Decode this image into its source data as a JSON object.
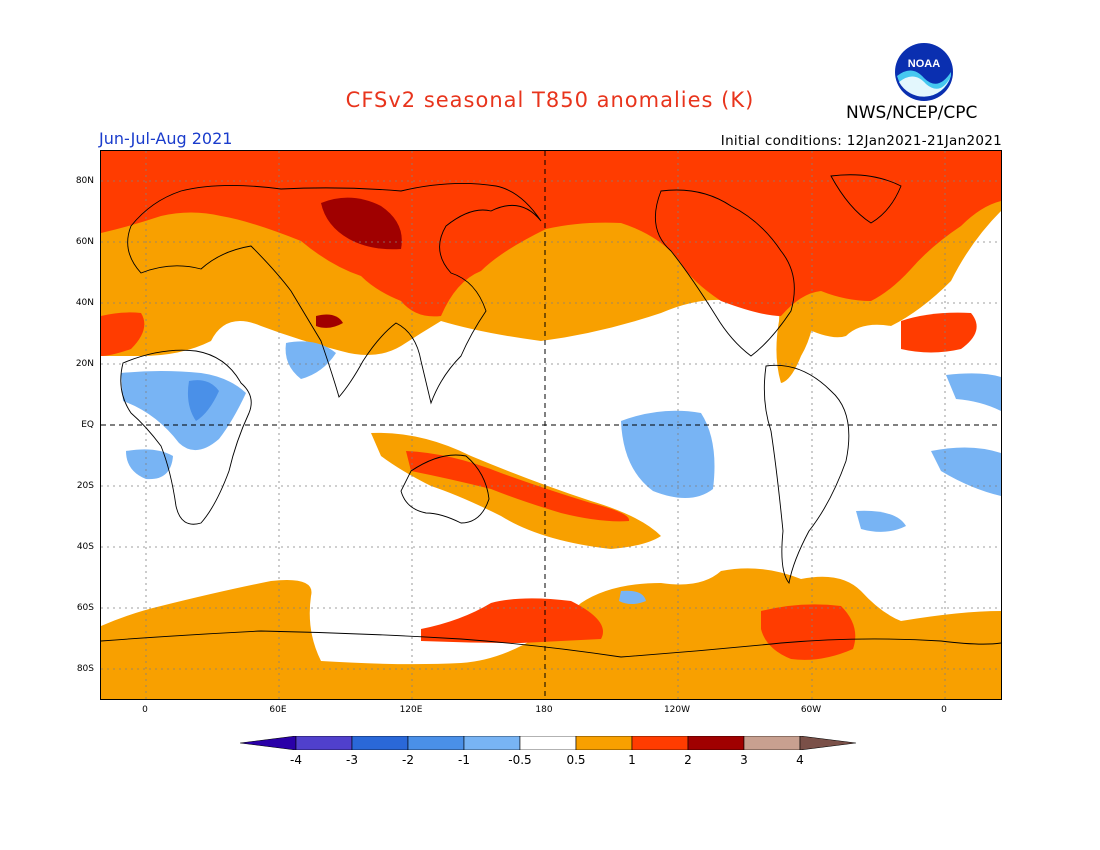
{
  "header": {
    "title": "CFSv2 seasonal T850 anomalies (K)",
    "agency": "NWS/NCEP/CPC",
    "season": "Jun-Jul-Aug 2021",
    "initial_conditions": "Initial conditions: 12Jan2021-21Jan2021",
    "logo_text": "NOAA"
  },
  "axes": {
    "lat_labels": [
      "80N",
      "60N",
      "40N",
      "20N",
      "EQ",
      "20S",
      "40S",
      "60S",
      "80S"
    ],
    "lon_labels": [
      "0",
      "60E",
      "120E",
      "180",
      "120W",
      "60W",
      "0"
    ]
  },
  "colorbar": {
    "labels": [
      "-4",
      "-3",
      "-2",
      "-1",
      "-0.5",
      "0.5",
      "1",
      "2",
      "3",
      "4"
    ],
    "colors": [
      "#2a00a8",
      "#5040cc",
      "#2a68d8",
      "#4a90e8",
      "#78b4f4",
      "#ffffff",
      "#f8a000",
      "#ff3c00",
      "#a00000",
      "#c8a090",
      "#7a5048"
    ]
  }
}
